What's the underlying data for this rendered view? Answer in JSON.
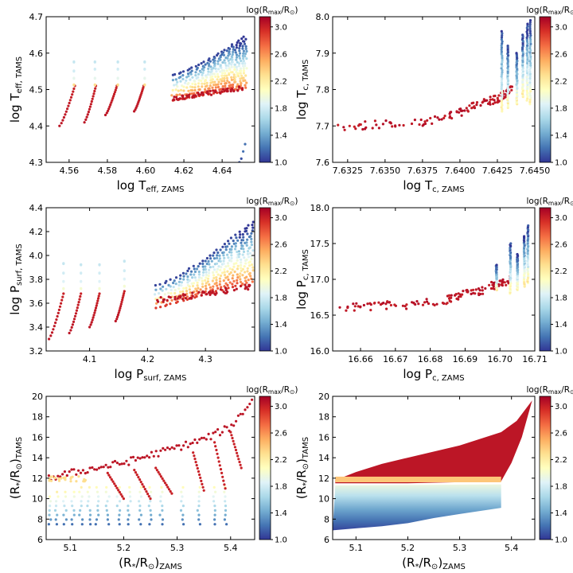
{
  "colormap": [
    "#313695",
    "#4575b4",
    "#74add1",
    "#abd9e9",
    "#e0f3f8",
    "#ffffbf",
    "#fee090",
    "#fdae61",
    "#f46d43",
    "#d73027",
    "#a50026"
  ],
  "chart_data": [
    {
      "id": "teff",
      "type": "scatter",
      "xlabel": {
        "main": "log T",
        "sub": "eff, ZAMS"
      },
      "ylabel": {
        "main": "log T",
        "sub": "eff, TAMS"
      },
      "xlim": [
        4.548,
        4.657
      ],
      "ylim": [
        4.3,
        4.7
      ],
      "xticks": [
        4.56,
        4.58,
        4.6,
        4.62,
        4.64
      ],
      "xtick_labels": [
        "4.56",
        "4.58",
        "4.60",
        "4.62",
        "4.64"
      ],
      "yticks": [
        4.3,
        4.4,
        4.5,
        4.6,
        4.7
      ],
      "ytick_labels": [
        "4.3",
        "4.4",
        "4.5",
        "4.6",
        "4.7"
      ],
      "colorbar": {
        "title_main": "log(R",
        "title_sub": "max",
        "title_mid": "/R",
        "title_sub2": "⊙",
        "title_end": ")",
        "range": [
          1.0,
          3.15
        ],
        "ticks": [
          1.0,
          1.4,
          1.8,
          2.2,
          2.6,
          3.0
        ],
        "tick_labels": [
          "1.0",
          "1.4",
          "1.8",
          "2.2",
          "2.6",
          "3.0"
        ]
      },
      "tracks": [
        {
          "x0": 4.555,
          "y0": 4.4,
          "x1": 4.563,
          "y1": 4.51,
          "c0": 3.05,
          "c1": 3.0,
          "ext": [
            [
              4.5625,
              4.512,
              2.3
            ],
            [
              4.5625,
              4.53,
              1.9
            ],
            [
              4.5625,
              4.55,
              1.8
            ],
            [
              4.5625,
              4.575,
              1.75
            ]
          ]
        },
        {
          "x0": 4.568,
          "y0": 4.41,
          "x1": 4.574,
          "y1": 4.51,
          "c0": 3.05,
          "c1": 3.0,
          "ext": [
            [
              4.5735,
              4.512,
              2.3
            ],
            [
              4.5735,
              4.53,
              1.9
            ],
            [
              4.5735,
              4.555,
              1.8
            ],
            [
              4.5735,
              4.575,
              1.75
            ]
          ]
        },
        {
          "x0": 4.579,
          "y0": 4.43,
          "x1": 4.585,
          "y1": 4.51,
          "c0": 3.05,
          "c1": 3.0,
          "ext": [
            [
              4.5855,
              4.512,
              2.3
            ],
            [
              4.5855,
              4.53,
              1.9
            ],
            [
              4.5855,
              4.555,
              1.8
            ],
            [
              4.5855,
              4.575,
              1.75
            ]
          ]
        },
        {
          "x0": 4.594,
          "y0": 4.44,
          "x1": 4.599,
          "y1": 4.51,
          "c0": 3.05,
          "c1": 3.0,
          "ext": [
            [
              4.5995,
              4.512,
              2.3
            ],
            [
              4.5995,
              4.53,
              1.9
            ],
            [
              4.5995,
              4.555,
              1.8
            ],
            [
              4.5995,
              4.575,
              1.75
            ]
          ]
        }
      ],
      "cloud": {
        "xmin": 4.614,
        "xmax": 4.652,
        "ylo_left": 4.47,
        "ylo_right": 4.505,
        "yhi_left": 4.54,
        "yhi_right": 4.645
      },
      "red_band": {
        "y": 4.475,
        "spread": 0.03
      },
      "outliers": [
        [
          4.649,
          4.3,
          1.1
        ],
        [
          4.65,
          4.31,
          1.1
        ],
        [
          4.651,
          4.33,
          1.2
        ],
        [
          4.652,
          4.35,
          1.2
        ]
      ]
    },
    {
      "id": "tc",
      "type": "scatter",
      "xlabel": {
        "main": "log T",
        "sub": "c, ZAMS"
      },
      "ylabel": {
        "main": "log T",
        "sub": "c, TAMS"
      },
      "xlim": [
        7.6315,
        7.645
      ],
      "ylim": [
        7.6,
        8.0
      ],
      "xticks": [
        7.6325,
        7.635,
        7.6375,
        7.64,
        7.6425,
        7.645
      ],
      "xtick_labels": [
        "7.6325",
        "7.6350",
        "7.6375",
        "7.6400",
        "7.6425",
        "7.6450"
      ],
      "yticks": [
        7.6,
        7.7,
        7.8,
        7.9,
        8.0
      ],
      "ytick_labels": [
        "7.6",
        "7.7",
        "7.8",
        "7.9",
        "8.0"
      ],
      "colorbar": {
        "title_main": "log(R",
        "title_sub": "max",
        "title_mid": "/R",
        "title_sub2": "⊙",
        "title_end": ")",
        "range": [
          1.0,
          3.15
        ],
        "ticks": [
          1.0,
          1.4,
          1.8,
          2.2,
          2.6,
          3.0
        ],
        "tick_labels": [
          "1.0",
          "1.4",
          "1.8",
          "2.2",
          "2.6",
          "3.0"
        ]
      },
      "curve": [
        [
          7.6318,
          7.7
        ],
        [
          7.635,
          7.705
        ],
        [
          7.638,
          7.71
        ],
        [
          7.64,
          7.735
        ],
        [
          7.6415,
          7.765
        ],
        [
          7.6425,
          7.775
        ],
        [
          7.643,
          7.79
        ],
        [
          7.6435,
          7.8
        ]
      ],
      "columns": [
        [
          7.6428,
          7.74,
          7.96
        ],
        [
          7.6432,
          7.75,
          7.92
        ],
        [
          7.6438,
          7.76,
          7.9
        ],
        [
          7.6442,
          7.78,
          7.95
        ],
        [
          7.6445,
          7.77,
          7.98
        ],
        [
          7.6447,
          7.76,
          7.99
        ]
      ]
    },
    {
      "id": "psurf",
      "type": "scatter",
      "xlabel": {
        "main": "log P",
        "sub": "surf, ZAMS"
      },
      "ylabel": {
        "main": "log P",
        "sub": "surf, TAMS"
      },
      "xlim": [
        4.025,
        4.385
      ],
      "ylim": [
        3.2,
        4.4
      ],
      "xticks": [
        4.1,
        4.2,
        4.3
      ],
      "xtick_labels": [
        "4.1",
        "4.2",
        "4.3"
      ],
      "yticks": [
        3.2,
        3.4,
        3.6,
        3.8,
        4.0,
        4.2,
        4.4
      ],
      "ytick_labels": [
        "3.2",
        "3.4",
        "3.6",
        "3.8",
        "4.0",
        "4.2",
        "4.4"
      ],
      "colorbar": {
        "title_main": "log(R",
        "title_sub": "max",
        "title_mid": "/R",
        "title_sub2": "⊙",
        "title_end": ")",
        "range": [
          1.0,
          3.15
        ],
        "ticks": [
          1.0,
          1.4,
          1.8,
          2.2,
          2.6,
          3.0
        ],
        "tick_labels": [
          "1.0",
          "1.4",
          "1.8",
          "2.2",
          "2.6",
          "3.0"
        ]
      },
      "tracks": [
        {
          "x0": 4.03,
          "y0": 3.3,
          "x1": 4.055,
          "y1": 3.68,
          "c0": 3.05,
          "c1": 3.0,
          "ext": [
            [
              4.055,
              3.72,
              2.0
            ],
            [
              4.055,
              3.78,
              1.85
            ],
            [
              4.055,
              3.85,
              1.8
            ],
            [
              4.055,
              3.93,
              1.75
            ]
          ]
        },
        {
          "x0": 4.065,
          "y0": 3.35,
          "x1": 4.085,
          "y1": 3.68,
          "c0": 3.05,
          "c1": 3.0,
          "ext": [
            [
              4.085,
              3.72,
              2.0
            ],
            [
              4.085,
              3.78,
              1.85
            ],
            [
              4.085,
              3.85,
              1.8
            ],
            [
              4.085,
              3.92,
              1.75
            ]
          ]
        },
        {
          "x0": 4.1,
          "y0": 3.4,
          "x1": 4.117,
          "y1": 3.68,
          "c0": 3.05,
          "c1": 3.0,
          "ext": [
            [
              4.117,
              3.72,
              2.0
            ],
            [
              4.117,
              3.78,
              1.85
            ],
            [
              4.117,
              3.85,
              1.8
            ],
            [
              4.117,
              3.92,
              1.75
            ]
          ]
        },
        {
          "x0": 4.145,
          "y0": 3.45,
          "x1": 4.16,
          "y1": 3.7,
          "c0": 3.05,
          "c1": 3.0,
          "ext": [
            [
              4.16,
              3.74,
              2.0
            ],
            [
              4.16,
              3.8,
              1.85
            ],
            [
              4.16,
              3.87,
              1.8
            ],
            [
              4.16,
              3.95,
              1.75
            ]
          ]
        }
      ],
      "cloud": {
        "xmin": 4.215,
        "xmax": 4.38,
        "ylo_left": 3.56,
        "ylo_right": 3.78,
        "yhi_left": 3.75,
        "yhi_right": 4.28
      },
      "red_band": {
        "y": 3.62,
        "spread": 0.12
      }
    },
    {
      "id": "pc",
      "type": "scatter",
      "xlabel": {
        "main": "log P",
        "sub": "c, ZAMS"
      },
      "ylabel": {
        "main": "log P",
        "sub": "c, TAMS"
      },
      "xlim": [
        16.652,
        16.71
      ],
      "ylim": [
        16.0,
        18.0
      ],
      "xticks": [
        16.66,
        16.67,
        16.68,
        16.69,
        16.7,
        16.71
      ],
      "xtick_labels": [
        "16.66",
        "16.67",
        "16.68",
        "16.69",
        "16.70",
        "16.71"
      ],
      "yticks": [
        16.0,
        16.5,
        17.0,
        17.5,
        18.0
      ],
      "ytick_labels": [
        "16.0",
        "16.5",
        "17.0",
        "17.5",
        "18.0"
      ],
      "colorbar": {
        "title_main": "log(R",
        "title_sub": "max",
        "title_mid": "/R",
        "title_sub2": "⊙",
        "title_end": ")",
        "range": [
          1.0,
          3.15
        ],
        "ticks": [
          1.0,
          1.4,
          1.8,
          2.2,
          2.6,
          3.0
        ],
        "tick_labels": [
          "1.0",
          "1.4",
          "1.8",
          "2.2",
          "2.6",
          "3.0"
        ]
      },
      "curve": [
        [
          16.653,
          16.6
        ],
        [
          16.665,
          16.63
        ],
        [
          16.675,
          16.65
        ],
        [
          16.685,
          16.72
        ],
        [
          16.69,
          16.8
        ],
        [
          16.695,
          16.85
        ],
        [
          16.7,
          16.95
        ],
        [
          16.703,
          17.0
        ]
      ],
      "columns": [
        [
          16.699,
          16.85,
          17.2
        ],
        [
          16.703,
          16.8,
          17.5
        ],
        [
          16.705,
          16.85,
          17.35
        ],
        [
          16.707,
          16.9,
          17.6
        ],
        [
          16.708,
          16.95,
          17.75
        ]
      ]
    },
    {
      "id": "radius",
      "type": "scatter",
      "xlabel": {
        "main": "(R",
        "sub": "*",
        "mid": "/R",
        "sub2": "⊙",
        "end": ")",
        "sub3": "ZAMS"
      },
      "ylabel": {
        "main": "(R",
        "sub": "*",
        "mid": "/R",
        "sub2": "⊙",
        "end": ")",
        "sub3": "TAMS"
      },
      "xlim": [
        5.055,
        5.445
      ],
      "ylim": [
        6,
        20
      ],
      "xticks": [
        5.1,
        5.2,
        5.3,
        5.4
      ],
      "xtick_labels": [
        "5.1",
        "5.2",
        "5.3",
        "5.4"
      ],
      "yticks": [
        6,
        8,
        10,
        12,
        14,
        16,
        18,
        20
      ],
      "ytick_labels": [
        "6",
        "8",
        "10",
        "12",
        "14",
        "16",
        "18",
        "20"
      ],
      "colorbar": {
        "title_main": "log(R",
        "title_sub": "max",
        "title_mid": "/R",
        "title_sub2": "⊙",
        "title_end": ")",
        "range": [
          1.0,
          3.15
        ],
        "ticks": [
          1.0,
          1.4,
          1.8,
          2.2,
          2.6,
          3.0
        ],
        "tick_labels": [
          "1.0",
          "1.4",
          "1.8",
          "2.2",
          "2.6",
          "3.0"
        ]
      },
      "top_curve": [
        [
          5.06,
          12.0
        ],
        [
          5.1,
          12.5
        ],
        [
          5.2,
          13.5
        ],
        [
          5.3,
          15.0
        ],
        [
          5.35,
          15.8
        ],
        [
          5.4,
          17.0
        ],
        [
          5.44,
          19.6
        ]
      ],
      "columns": [
        5.062,
        5.075,
        5.09,
        5.105,
        5.12,
        5.135,
        5.15,
        5.17,
        5.19,
        5.21,
        5.23,
        5.25,
        5.27,
        5.31,
        5.34,
        5.37,
        5.39
      ],
      "diagonals": [
        [
          5.17,
          12.5,
          5.2,
          10.0
        ],
        [
          5.22,
          12.8,
          5.25,
          10.0
        ],
        [
          5.26,
          13.0,
          5.29,
          10.5
        ],
        [
          5.33,
          14.5,
          5.35,
          10.8
        ],
        [
          5.37,
          15.5,
          5.39,
          11.0
        ],
        [
          5.4,
          16.5,
          5.42,
          13.0
        ]
      ]
    },
    {
      "id": "radius-filled",
      "type": "area",
      "xlabel": {
        "main": "(R",
        "sub": "*",
        "mid": "/R",
        "sub2": "⊙",
        "end": ")",
        "sub3": "ZAMS"
      },
      "ylabel": {
        "main": "(R",
        "sub": "*",
        "mid": "/R",
        "sub2": "⊙",
        "end": ")",
        "sub3": "TAMS"
      },
      "xlim": [
        5.055,
        5.445
      ],
      "ylim": [
        6,
        20
      ],
      "xticks": [
        5.1,
        5.2,
        5.3,
        5.4
      ],
      "xtick_labels": [
        "5.1",
        "5.2",
        "5.3",
        "5.4"
      ],
      "yticks": [
        6,
        8,
        10,
        12,
        14,
        16,
        18,
        20
      ],
      "ytick_labels": [
        "6",
        "8",
        "10",
        "12",
        "14",
        "16",
        "18",
        "20"
      ],
      "colorbar": {
        "title_main": "log(R",
        "title_sub": "max",
        "title_mid": "/R",
        "title_sub2": "⊙",
        "title_end": ")",
        "range": [
          1.0,
          3.15
        ],
        "ticks": [
          1.0,
          1.4,
          1.8,
          2.2,
          2.6,
          3.0
        ],
        "tick_labels": [
          "1.0",
          "1.4",
          "1.8",
          "2.2",
          "2.6",
          "3.0"
        ]
      },
      "red_top": [
        [
          5.06,
          11.8
        ],
        [
          5.1,
          12.6
        ],
        [
          5.15,
          13.4
        ],
        [
          5.2,
          14.0
        ],
        [
          5.3,
          15.2
        ],
        [
          5.38,
          16.5
        ],
        [
          5.41,
          17.6
        ],
        [
          5.44,
          19.6
        ]
      ],
      "red_bottom": [
        [
          5.06,
          11.5
        ],
        [
          5.2,
          11.5
        ],
        [
          5.38,
          11.7
        ],
        [
          5.4,
          13.5
        ],
        [
          5.42,
          16.0
        ],
        [
          5.44,
          19.6
        ]
      ],
      "band_y": 12.0,
      "blue_top": [
        [
          5.06,
          11.3
        ],
        [
          5.38,
          11.4
        ]
      ],
      "blue_bottom": [
        [
          5.055,
          6.9
        ],
        [
          5.1,
          7.1
        ],
        [
          5.15,
          7.3
        ],
        [
          5.2,
          7.6
        ],
        [
          5.25,
          8.1
        ],
        [
          5.3,
          8.5
        ],
        [
          5.38,
          9.1
        ]
      ]
    }
  ]
}
